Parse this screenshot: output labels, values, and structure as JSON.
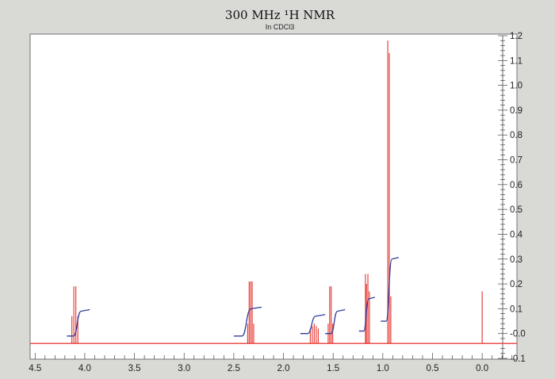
{
  "chart_data": {
    "type": "line",
    "title": "300 MHz ¹H NMR",
    "subtitle": "In CDCl3",
    "xlabel": "",
    "ylabel": "",
    "x_reversed": true,
    "xlim": [
      4.55,
      -0.35
    ],
    "ylim": [
      -0.1,
      1.2
    ],
    "x_ticks": [
      {
        "value": 4.5,
        "label": "4.5"
      },
      {
        "value": 4.0,
        "label": "4.0"
      },
      {
        "value": 3.5,
        "label": "3.5"
      },
      {
        "value": 3.0,
        "label": "3.0"
      },
      {
        "value": 2.5,
        "label": "2.5"
      },
      {
        "value": 2.0,
        "label": "2.0"
      },
      {
        "value": 1.5,
        "label": "1.5"
      },
      {
        "value": 1.0,
        "label": "1.0"
      },
      {
        "value": 0.5,
        "label": "0.5"
      },
      {
        "value": 0.0,
        "label": "0.0"
      }
    ],
    "y_ticks": [
      {
        "value": 1.2,
        "label": "1.2"
      },
      {
        "value": 1.1,
        "label": "1.1"
      },
      {
        "value": 1.0,
        "label": "1.0"
      },
      {
        "value": 0.9,
        "label": "0.9"
      },
      {
        "value": 0.8,
        "label": "0.8"
      },
      {
        "value": 0.7,
        "label": "0.7"
      },
      {
        "value": 0.6,
        "label": "0.6"
      },
      {
        "value": 0.5,
        "label": "0.5"
      },
      {
        "value": 0.4,
        "label": "0.4"
      },
      {
        "value": 0.3,
        "label": "0.3"
      },
      {
        "value": 0.2,
        "label": "0.2"
      },
      {
        "value": 0.1,
        "label": "0.1"
      },
      {
        "value": 0.0,
        "label": "-0.0"
      },
      {
        "value": -0.1,
        "label": "-0.1"
      }
    ],
    "baseline": -0.04,
    "grid": false,
    "spectrum_color": "#e8413c",
    "integral_color": "#2f3d9c",
    "peaks": [
      {
        "ppm": 4.13,
        "height": 0.07
      },
      {
        "ppm": 4.11,
        "height": 0.19
      },
      {
        "ppm": 4.09,
        "height": 0.19
      },
      {
        "ppm": 4.07,
        "height": 0.07
      },
      {
        "ppm": 2.36,
        "height": 0.04
      },
      {
        "ppm": 2.345,
        "height": 0.21
      },
      {
        "ppm": 2.33,
        "height": 0.21
      },
      {
        "ppm": 2.315,
        "height": 0.21
      },
      {
        "ppm": 2.3,
        "height": 0.04
      },
      {
        "ppm": 1.73,
        "height": 0.02
      },
      {
        "ppm": 1.71,
        "height": 0.03
      },
      {
        "ppm": 1.69,
        "height": 0.04
      },
      {
        "ppm": 1.67,
        "height": 0.03
      },
      {
        "ppm": 1.65,
        "height": 0.02
      },
      {
        "ppm": 1.55,
        "height": 0.04
      },
      {
        "ppm": 1.535,
        "height": 0.19
      },
      {
        "ppm": 1.52,
        "height": 0.19
      },
      {
        "ppm": 1.505,
        "height": 0.04
      },
      {
        "ppm": 1.175,
        "height": 0.24
      },
      {
        "ppm": 1.165,
        "height": 0.2
      },
      {
        "ppm": 1.15,
        "height": 0.24
      },
      {
        "ppm": 1.135,
        "height": 0.17
      },
      {
        "ppm": 0.95,
        "height": 1.18
      },
      {
        "ppm": 0.935,
        "height": 1.13
      },
      {
        "ppm": 0.92,
        "height": 0.15
      },
      {
        "ppm": 0.0,
        "height": 0.17
      }
    ],
    "integrals": [
      {
        "x_start": 4.18,
        "x_end": 3.95,
        "y_start": -0.01,
        "y_end": 0.09
      },
      {
        "x_start": 2.5,
        "x_end": 2.22,
        "y_start": -0.01,
        "y_end": 0.1
      },
      {
        "x_start": 1.83,
        "x_end": 1.58,
        "y_start": 0.0,
        "y_end": 0.07
      },
      {
        "x_start": 1.58,
        "x_end": 1.38,
        "y_start": 0.0,
        "y_end": 0.09
      },
      {
        "x_start": 1.24,
        "x_end": 1.08,
        "y_start": 0.01,
        "y_end": 0.14
      },
      {
        "x_start": 1.02,
        "x_end": 0.84,
        "y_start": 0.05,
        "y_end": 0.3
      }
    ]
  }
}
